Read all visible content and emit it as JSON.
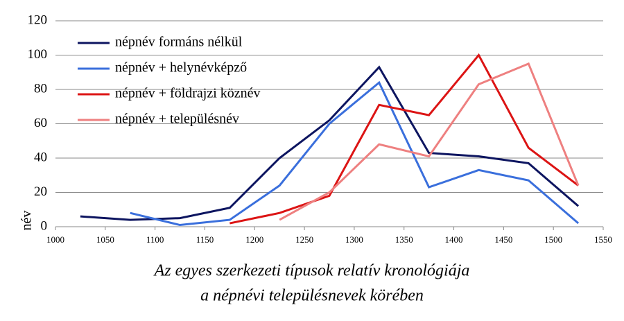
{
  "chart_data": {
    "type": "line",
    "y_label": "név",
    "caption": [
      "Az egyes szerkezeti típusok relatív kronológiája",
      "a népnévi településnevek körében"
    ],
    "x": [
      1025,
      1075,
      1125,
      1175,
      1225,
      1275,
      1325,
      1375,
      1425,
      1475,
      1525
    ],
    "series": [
      {
        "name": "népnév formáns nélkül",
        "color": "#0d1560",
        "values": [
          6,
          4,
          5,
          11,
          40,
          62,
          93,
          43,
          41,
          37,
          12
        ]
      },
      {
        "name": "népnév + helynévképző",
        "color": "#3a6fdc",
        "values": [
          null,
          8,
          1,
          4,
          24,
          60,
          84,
          23,
          33,
          27,
          2
        ]
      },
      {
        "name": "népnév + földrajzi köznév",
        "color": "#dc1414",
        "values": [
          null,
          null,
          null,
          2,
          8,
          18,
          71,
          65,
          100,
          46,
          24
        ]
      },
      {
        "name": "népnév + településnév",
        "color": "#ee8080",
        "values": [
          null,
          null,
          null,
          null,
          4,
          20,
          48,
          41,
          83,
          95,
          24
        ]
      }
    ],
    "xlim": [
      1000,
      1550
    ],
    "xticks": [
      1000,
      1050,
      1100,
      1150,
      1200,
      1250,
      1300,
      1350,
      1400,
      1450,
      1500,
      1550
    ],
    "ylim": [
      0,
      120
    ],
    "yticks": [
      0,
      20,
      40,
      60,
      80,
      100,
      120
    ],
    "grid": true,
    "legend": "top-left"
  }
}
